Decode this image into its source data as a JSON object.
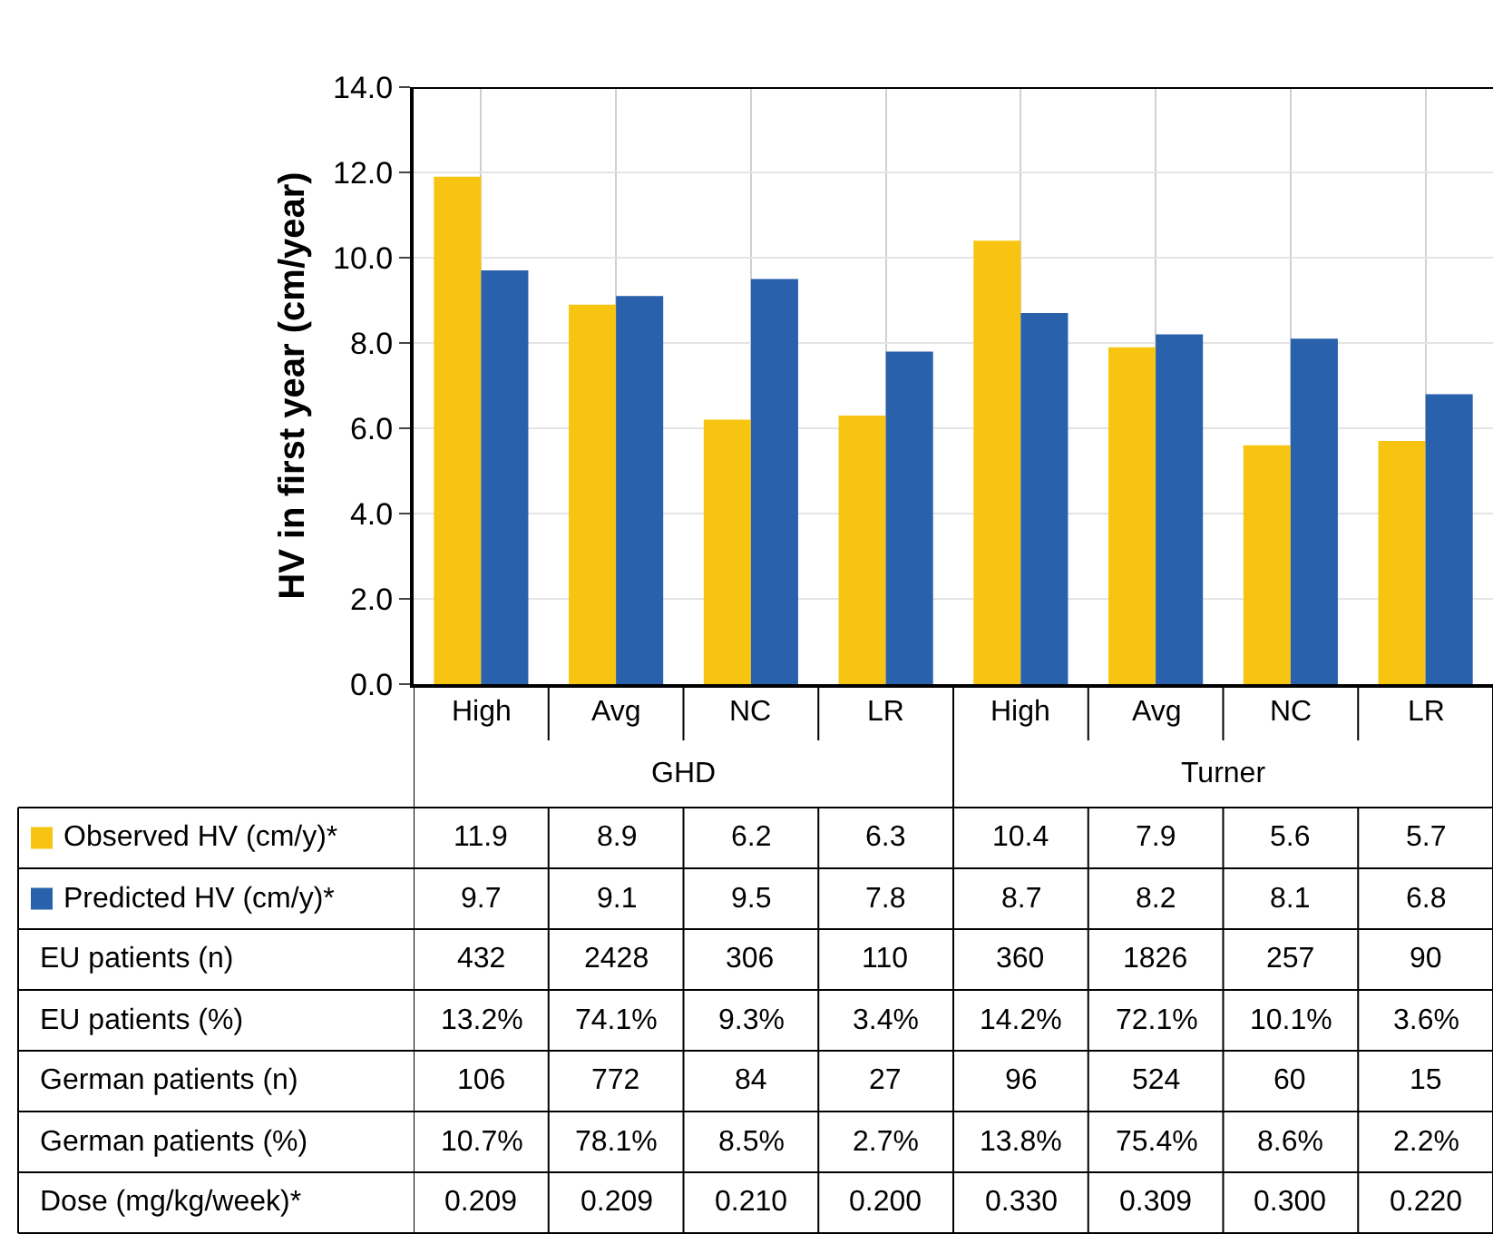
{
  "chart_data": {
    "type": "bar",
    "ylabel": "HV in first year (cm/year)",
    "categories": [
      "High",
      "Avg",
      "NC",
      "LR",
      "High",
      "Avg",
      "NC",
      "LR"
    ],
    "series": [
      {
        "name": "Observed HV (cm/y)*",
        "color": "#f7c511",
        "values": [
          11.9,
          8.9,
          6.2,
          6.3,
          10.4,
          7.9,
          5.6,
          5.7
        ]
      },
      {
        "name": "Predicted HV (cm/y)*",
        "color": "#2961ad",
        "values": [
          9.7,
          9.1,
          9.5,
          7.8,
          8.7,
          8.2,
          8.1,
          6.8
        ]
      }
    ],
    "ylim": [
      0,
      14
    ],
    "yticks": [
      {
        "value": 0,
        "label": "0.0"
      },
      {
        "value": 2,
        "label": "2.0"
      },
      {
        "value": 4,
        "label": "4.0"
      },
      {
        "value": 6,
        "label": "6.0"
      },
      {
        "value": 8,
        "label": "8.0"
      },
      {
        "value": 10,
        "label": "10.0"
      },
      {
        "value": 12,
        "label": "12.0"
      },
      {
        "value": 14,
        "label": "14.0"
      }
    ],
    "grid": true,
    "legend": "bottom left",
    "data_labels": true,
    "annotations": [
      "GHD",
      "Turner",
      "EU patients (n)",
      "432",
      "2428",
      "306",
      "110",
      "360",
      "1826",
      "257",
      "90",
      "EU patients (%)",
      "13.2%",
      "74.1%",
      "9.3%",
      "3.4%",
      "14.2%",
      "72.1%",
      "10.1%",
      "3.6%",
      "German patients (n)",
      "106",
      "772",
      "84",
      "27",
      "96",
      "524",
      "60",
      "15",
      "German patients (%)",
      "10.7%",
      "78.1%",
      "8.5%",
      "2.7%",
      "13.8%",
      "75.4%",
      "8.6%",
      "2.2%",
      "Dose (mg/kg/week)*",
      "0.209",
      "0.209",
      "0.210",
      "0.200",
      "0.330",
      "0.309",
      "0.300",
      "0.220"
    ]
  }
}
